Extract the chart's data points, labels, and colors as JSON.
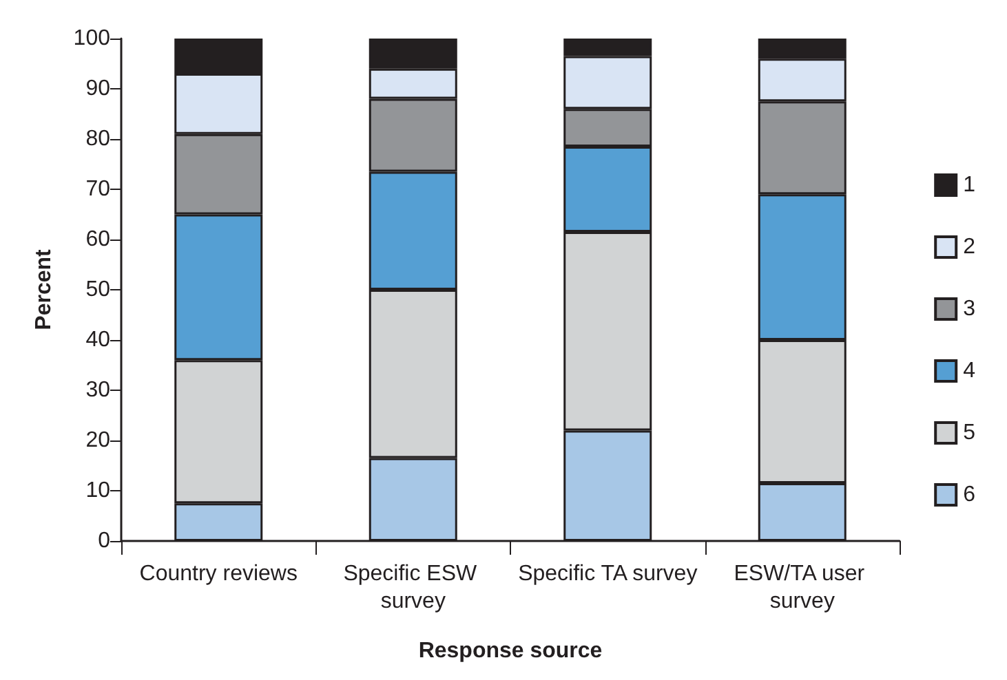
{
  "chart_data": {
    "type": "bar",
    "stacked": true,
    "xlabel": "Response source",
    "ylabel": "Percent",
    "categories": [
      "Country reviews",
      "Specific ESW survey",
      "Specific TA survey",
      "ESW/TA user survey"
    ],
    "series": [
      {
        "name": "6",
        "color": "#a7c7e6",
        "values": [
          7.5,
          16.5,
          22,
          11.5
        ]
      },
      {
        "name": "5",
        "color": "#d1d3d4",
        "values": [
          28.5,
          33.5,
          39.5,
          28.5
        ]
      },
      {
        "name": "4",
        "color": "#559fd3",
        "values": [
          29,
          23.5,
          17,
          29
        ]
      },
      {
        "name": "3",
        "color": "#939598",
        "values": [
          16,
          14.5,
          7.5,
          18.5
        ]
      },
      {
        "name": "2",
        "color": "#d9e4f4",
        "values": [
          12,
          6,
          10.5,
          8.5
        ]
      },
      {
        "name": "1",
        "color": "#231f20",
        "values": [
          7,
          6,
          3.5,
          4
        ]
      }
    ],
    "ylim": [
      0,
      100
    ],
    "yticks": [
      0,
      10,
      20,
      30,
      40,
      50,
      60,
      70,
      80,
      90,
      100
    ],
    "grid": false,
    "legend": "right"
  }
}
